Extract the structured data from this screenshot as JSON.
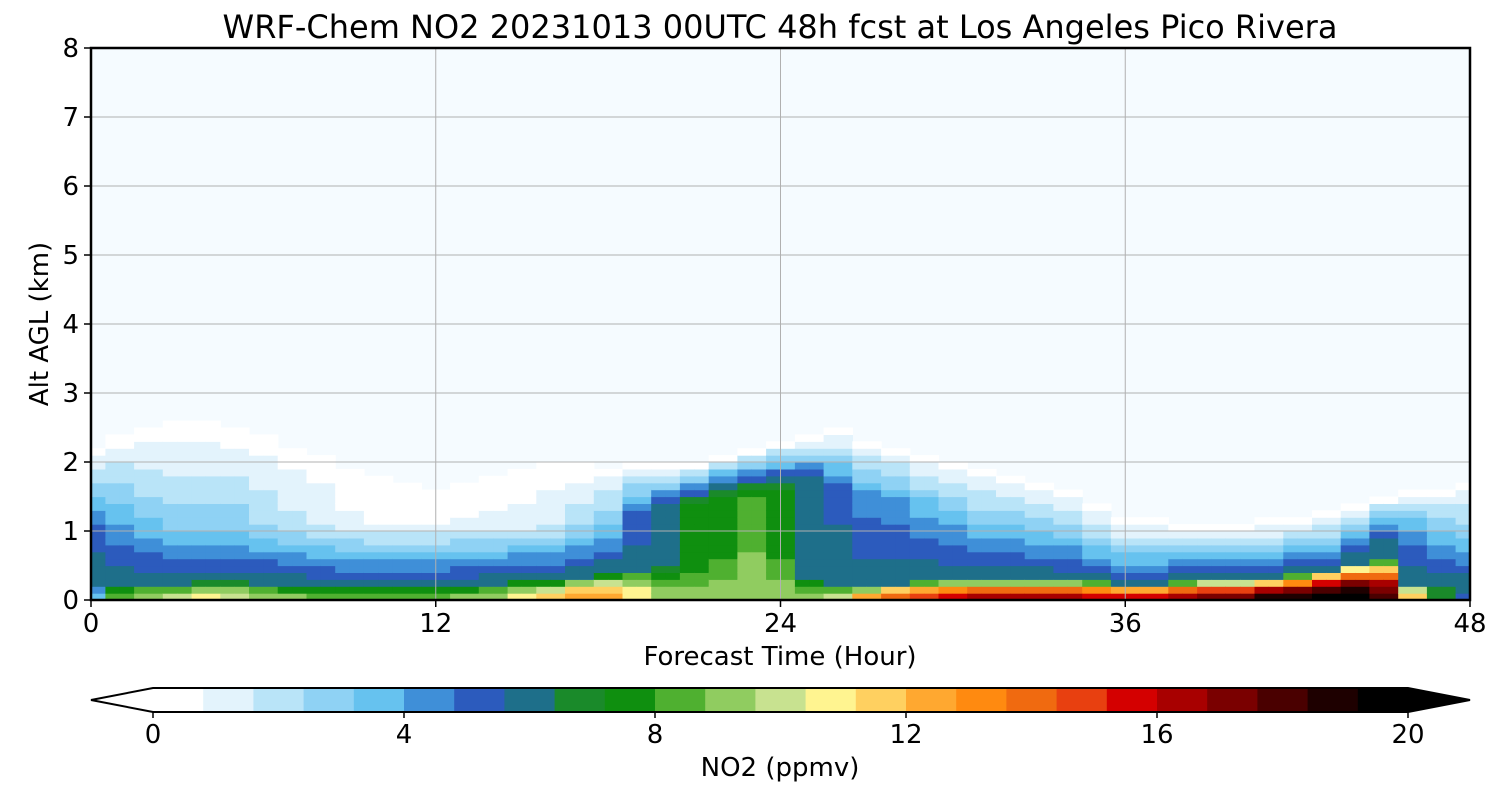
{
  "chart_data": {
    "type": "heatmap",
    "title": "WRF-Chem NO2  20231013 00UTC 48h fcst at Los Angeles Pico Rivera",
    "xlabel": "Forecast Time (Hour)",
    "ylabel": "Alt AGL (km)",
    "xlim": [
      0,
      48
    ],
    "ylim": [
      0,
      8
    ],
    "x_ticks": [
      "0",
      "12",
      "24",
      "36",
      "48"
    ],
    "y_ticks": [
      "0",
      "1",
      "2",
      "3",
      "4",
      "5",
      "6",
      "7",
      "8"
    ],
    "grid": true,
    "colorbar": {
      "label": "NO2  (ppmv)",
      "min": 0,
      "max": 20,
      "ticks": [
        "0",
        "4",
        "8",
        "12",
        "16",
        "20"
      ],
      "extend": "both",
      "colors": [
        "#ffffff",
        "#e3f3fc",
        "#b9e4f8",
        "#8fd2f4",
        "#66c2ef",
        "#3f8fd8",
        "#2c5bbd",
        "#1e6f8a",
        "#1a8a2a",
        "#0f8f0f",
        "#4fb030",
        "#90cc60",
        "#c8e290",
        "#fff490",
        "#ffd060",
        "#ffa830",
        "#ff8a10",
        "#f06a10",
        "#e84010",
        "#d40000",
        "#a80000",
        "#7a0000",
        "#4a0000",
        "#1e0000",
        "#000000"
      ]
    },
    "x": [
      0,
      1,
      2,
      3,
      4,
      5,
      6,
      7,
      8,
      9,
      10,
      11,
      12,
      13,
      14,
      15,
      16,
      17,
      18,
      19,
      20,
      21,
      22,
      23,
      24,
      25,
      26,
      27,
      28,
      29,
      30,
      31,
      32,
      33,
      34,
      35,
      36,
      37,
      38,
      39,
      40,
      41,
      42,
      43,
      44,
      45,
      46,
      47,
      48
    ],
    "profiles": {
      "surface_value": [
        4,
        9,
        10,
        10.5,
        11,
        10.5,
        10,
        9.5,
        9,
        9,
        9,
        9,
        9,
        9.5,
        10,
        11,
        12,
        13.5,
        13,
        11.5,
        10,
        9.5,
        9.5,
        10,
        9.5,
        10,
        11,
        13,
        15,
        16,
        16.5,
        17,
        17,
        17,
        17,
        16.5,
        16.5,
        17,
        17.5,
        18,
        18.5,
        19.5,
        20,
        20.5,
        20.5,
        19,
        12,
        7,
        5
      ],
      "surface_km": [
        0.25,
        0.22,
        0.22,
        0.25,
        0.28,
        0.27,
        0.25,
        0.22,
        0.2,
        0.2,
        0.2,
        0.2,
        0.2,
        0.22,
        0.25,
        0.3,
        0.3,
        0.32,
        0.4,
        0.45,
        0.5,
        0.55,
        0.7,
        1.0,
        0.7,
        0.3,
        0.22,
        0.22,
        0.25,
        0.28,
        0.3,
        0.3,
        0.3,
        0.3,
        0.3,
        0.28,
        0.25,
        0.25,
        0.28,
        0.3,
        0.3,
        0.33,
        0.38,
        0.45,
        0.55,
        0.6,
        0.25,
        0.2,
        0.2
      ],
      "aloft_value": [
        5.5,
        4.5,
        3.5,
        3,
        3,
        3,
        2.5,
        2,
        1.5,
        1,
        0.8,
        0.8,
        0.8,
        1,
        1,
        1.2,
        1.5,
        2,
        3,
        5,
        6.5,
        7.5,
        8,
        8.5,
        8,
        6.5,
        5.5,
        4.5,
        4.5,
        4,
        3.5,
        3,
        3,
        3,
        3,
        2.5,
        2.2,
        2.2,
        2.5,
        2.5,
        2.5,
        2.5,
        3,
        3.5,
        4.5,
        5.5,
        4.5,
        3.5,
        3
      ],
      "aloft_km": [
        1.0,
        1.0,
        1.1,
        1.1,
        1.1,
        1.1,
        1.1,
        1.1,
        1.1,
        1.1,
        1.1,
        1.1,
        1.1,
        1.1,
        1.1,
        1.1,
        1.1,
        1.2,
        1.2,
        1.3,
        1.3,
        1.4,
        1.5,
        1.5,
        1.6,
        1.7,
        1.6,
        1.5,
        1.4,
        1.3,
        1.3,
        1.2,
        1.2,
        1.1,
        1.0,
        0.9,
        0.8,
        0.8,
        0.8,
        0.8,
        0.8,
        0.8,
        0.8,
        0.8,
        0.9,
        1.0,
        1.0,
        1.0,
        1.0
      ],
      "top_km": [
        2.3,
        2.5,
        2.6,
        2.7,
        2.7,
        2.6,
        2.5,
        2.4,
        2.3,
        2.2,
        2.1,
        2.0,
        1.9,
        1.9,
        2.0,
        2.1,
        2.2,
        2.1,
        2.0,
        2.0,
        2.0,
        2.0,
        2.1,
        2.2,
        2.3,
        2.4,
        2.5,
        2.4,
        2.3,
        2.2,
        2.1,
        2.0,
        1.9,
        1.8,
        1.7,
        1.5,
        1.3,
        1.2,
        1.1,
        1.1,
        1.1,
        1.2,
        1.2,
        1.3,
        1.4,
        1.5,
        1.6,
        1.7,
        1.8
      ]
    }
  }
}
